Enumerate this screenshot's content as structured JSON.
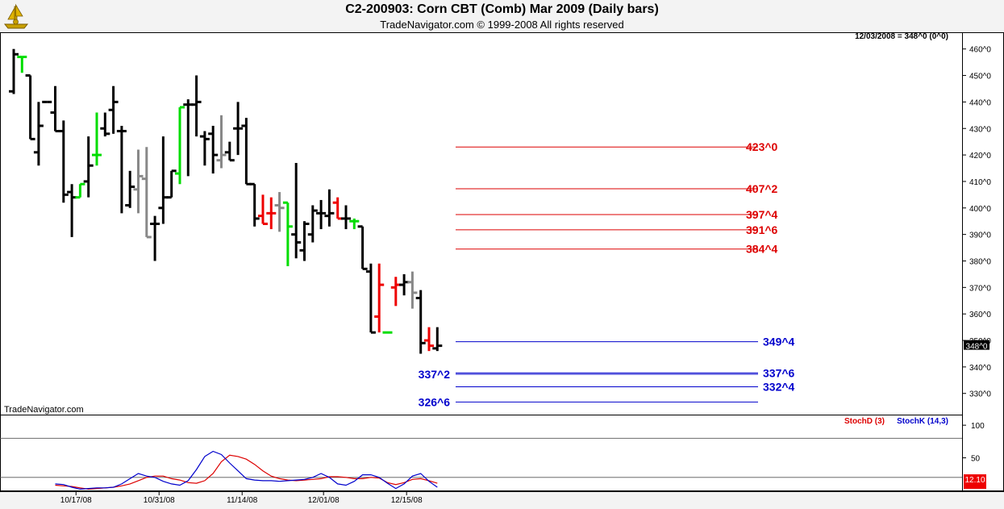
{
  "header": {
    "title": "C2-200903:  Corn CBT (Comb) Mar 2009  (Daily bars)",
    "subtitle": "TradeNavigator.com © 1999-2008 All rights reserved"
  },
  "watermark": "TradeNavigator.com",
  "readout": "12/03/2008 = 348^0 (0^0)",
  "colors": {
    "up_bar": "#000000",
    "down_bar": "#000000",
    "green_bar": "#00dd00",
    "gray_bar": "#888888",
    "red_bar": "#ee0000",
    "resistance": "#dd0000",
    "support": "#0000cc",
    "stochD": "#dd0000",
    "stochK": "#0000cc"
  },
  "chart_data": [
    {
      "type": "ohlc",
      "title": "C2-200903:  Corn CBT (Comb) Mar 2009  (Daily bars)",
      "ylim": [
        322,
        466
      ],
      "y_ticks": [
        "460^0",
        "450^0",
        "440^0",
        "430^0",
        "420^0",
        "410^0",
        "400^0",
        "390^0",
        "380^0",
        "370^0",
        "360^0",
        "350^0",
        "340^0",
        "330^0"
      ],
      "y_tick_values": [
        460,
        450,
        440,
        430,
        420,
        410,
        400,
        390,
        380,
        370,
        360,
        350,
        340,
        330
      ],
      "x_ticks": [
        "10/17/08",
        "10/31/08",
        "11/14/08",
        "12/01/08",
        "12/15/08"
      ],
      "x_tick_bar_index": [
        7.5,
        17.5,
        27.5,
        37.3,
        47.3
      ],
      "last_price_label": "348^0",
      "last_price": 348,
      "bars": [
        {
          "o": 444,
          "h": 460,
          "l": 443,
          "c": 458,
          "color": "up"
        },
        {
          "o": 457,
          "h": 457,
          "l": 451,
          "c": 457,
          "color": "green"
        },
        {
          "o": 450,
          "h": 450,
          "l": 426,
          "c": 426,
          "color": "down"
        },
        {
          "o": 421,
          "h": 440,
          "l": 416,
          "c": 431,
          "color": "up"
        },
        {
          "o": 440,
          "h": 440,
          "l": 440,
          "c": 440,
          "color": "up"
        },
        {
          "o": 436,
          "h": 446,
          "l": 429,
          "c": 429,
          "color": "down"
        },
        {
          "o": 429,
          "h": 433,
          "l": 402,
          "c": 405,
          "color": "down"
        },
        {
          "o": 406,
          "h": 409,
          "l": 389,
          "c": 404,
          "color": "up"
        },
        {
          "o": 404,
          "h": 409,
          "l": 404,
          "c": 409,
          "color": "green"
        },
        {
          "o": 410,
          "h": 427,
          "l": 404,
          "c": 416,
          "color": "up"
        },
        {
          "o": 420,
          "h": 436,
          "l": 416,
          "c": 420,
          "color": "green"
        },
        {
          "o": 430,
          "h": 436,
          "l": 427,
          "c": 428,
          "color": "down"
        },
        {
          "o": 437,
          "h": 446,
          "l": 428,
          "c": 440,
          "color": "up"
        },
        {
          "o": 429,
          "h": 431,
          "l": 398,
          "c": 429,
          "color": "up"
        },
        {
          "o": 401,
          "h": 414,
          "l": 400,
          "c": 408,
          "color": "up"
        },
        {
          "o": 407,
          "h": 422,
          "l": 398,
          "c": 412,
          "color": "gray"
        },
        {
          "o": 411,
          "h": 423,
          "l": 389,
          "c": 389,
          "color": "gray"
        },
        {
          "o": 394,
          "h": 397,
          "l": 380,
          "c": 394,
          "color": "down"
        },
        {
          "o": 400,
          "h": 427,
          "l": 394,
          "c": 404,
          "color": "up"
        },
        {
          "o": 404,
          "h": 414,
          "l": 404,
          "c": 414,
          "color": "up"
        },
        {
          "o": 413,
          "h": 438,
          "l": 409,
          "c": 438,
          "color": "green"
        },
        {
          "o": 439,
          "h": 441,
          "l": 412,
          "c": 439,
          "color": "up"
        },
        {
          "o": 439,
          "h": 450,
          "l": 427,
          "c": 440,
          "color": "up"
        },
        {
          "o": 427,
          "h": 429,
          "l": 416,
          "c": 426,
          "color": "up"
        },
        {
          "o": 428,
          "h": 431,
          "l": 413,
          "c": 420,
          "color": "down"
        },
        {
          "o": 418,
          "h": 435,
          "l": 415,
          "c": 420,
          "color": "gray"
        },
        {
          "o": 421,
          "h": 425,
          "l": 418,
          "c": 418,
          "color": "down"
        },
        {
          "o": 430,
          "h": 440,
          "l": 420,
          "c": 430,
          "color": "up"
        },
        {
          "o": 431,
          "h": 434,
          "l": 409,
          "c": 409,
          "color": "down"
        },
        {
          "o": 409,
          "h": 409,
          "l": 393,
          "c": 396,
          "color": "down"
        },
        {
          "o": 397,
          "h": 405,
          "l": 394,
          "c": 394,
          "color": "red"
        },
        {
          "o": 398,
          "h": 404,
          "l": 392,
          "c": 398,
          "color": "red"
        },
        {
          "o": 401,
          "h": 406,
          "l": 391,
          "c": 400,
          "color": "gray"
        },
        {
          "o": 402,
          "h": 402,
          "l": 378,
          "c": 393,
          "color": "green"
        },
        {
          "o": 390,
          "h": 417,
          "l": 381,
          "c": 387,
          "color": "down"
        },
        {
          "o": 384,
          "h": 395,
          "l": 380,
          "c": 394,
          "color": "up"
        },
        {
          "o": 390,
          "h": 401,
          "l": 387,
          "c": 399,
          "color": "up"
        },
        {
          "o": 398,
          "h": 403,
          "l": 392,
          "c": 398,
          "color": "up"
        },
        {
          "o": 397,
          "h": 407,
          "l": 393,
          "c": 398,
          "color": "up"
        },
        {
          "o": 402,
          "h": 404,
          "l": 396,
          "c": 396,
          "color": "red"
        },
        {
          "o": 396,
          "h": 401,
          "l": 392,
          "c": 396,
          "color": "down"
        },
        {
          "o": 395,
          "h": 396,
          "l": 392,
          "c": 395,
          "color": "green"
        },
        {
          "o": 393,
          "h": 393,
          "l": 377,
          "c": 377,
          "color": "down"
        },
        {
          "o": 376,
          "h": 379,
          "l": 353,
          "c": 353,
          "color": "down"
        },
        {
          "o": 359,
          "h": 379,
          "l": 353,
          "c": 371,
          "color": "red"
        },
        {
          "o": 353,
          "h": 353,
          "l": 353,
          "c": 353,
          "color": "green"
        },
        {
          "o": 370,
          "h": 374,
          "l": 363,
          "c": 371,
          "color": "red"
        },
        {
          "o": 371,
          "h": 375,
          "l": 367,
          "c": 372,
          "color": "down"
        },
        {
          "o": 372,
          "h": 376,
          "l": 362,
          "c": 368,
          "color": "gray"
        },
        {
          "o": 366,
          "h": 369,
          "l": 345,
          "c": 349,
          "color": "down"
        },
        {
          "o": 350,
          "h": 355,
          "l": 346,
          "c": 348,
          "color": "red"
        },
        {
          "o": 347,
          "h": 355,
          "l": 346,
          "c": 348,
          "color": "down"
        }
      ],
      "levels": [
        {
          "label": "423^0",
          "value": 423,
          "kind": "resistance"
        },
        {
          "label": "407^2",
          "value": 407.25,
          "kind": "resistance"
        },
        {
          "label": "397^4",
          "value": 397.5,
          "kind": "resistance"
        },
        {
          "label": "391^6",
          "value": 391.75,
          "kind": "resistance"
        },
        {
          "label": "384^4",
          "value": 384.5,
          "kind": "resistance"
        },
        {
          "label": "349^4",
          "value": 349.5,
          "kind": "support"
        },
        {
          "label": "337^6",
          "value": 337.75,
          "kind": "support"
        },
        {
          "label": "337^2",
          "value": 337.25,
          "kind": "support"
        },
        {
          "label": "332^4",
          "value": 332.5,
          "kind": "support"
        },
        {
          "label": "326^6",
          "value": 326.75,
          "kind": "support"
        }
      ]
    },
    {
      "type": "line",
      "title": "",
      "ylim": [
        0,
        115
      ],
      "y_ticks": [
        "100",
        "50"
      ],
      "y_tick_values": [
        100,
        50
      ],
      "series": [
        {
          "name": "StochD (3)",
          "values": [
            8,
            7,
            6,
            4,
            2,
            3,
            4,
            5,
            7,
            10,
            15,
            20,
            22,
            22,
            18,
            16,
            12,
            11,
            15,
            26,
            44,
            54,
            52,
            48,
            40,
            30,
            22,
            18,
            16,
            15,
            16,
            17,
            18,
            21,
            21,
            20,
            18,
            18,
            20,
            19,
            12,
            9,
            12,
            17,
            18,
            15,
            11
          ]
        },
        {
          "name": "StochK (14,3)",
          "values": [
            10,
            9,
            5,
            2,
            3,
            4,
            4,
            5,
            10,
            18,
            26,
            22,
            20,
            14,
            10,
            8,
            15,
            32,
            52,
            60,
            55,
            42,
            30,
            18,
            16,
            15,
            15,
            14,
            15,
            16,
            17,
            20,
            26,
            20,
            10,
            8,
            14,
            24,
            24,
            20,
            11,
            3,
            10,
            22,
            26,
            14,
            5
          ]
        }
      ],
      "last_value_label": "12.10",
      "legend": "top-right"
    }
  ]
}
